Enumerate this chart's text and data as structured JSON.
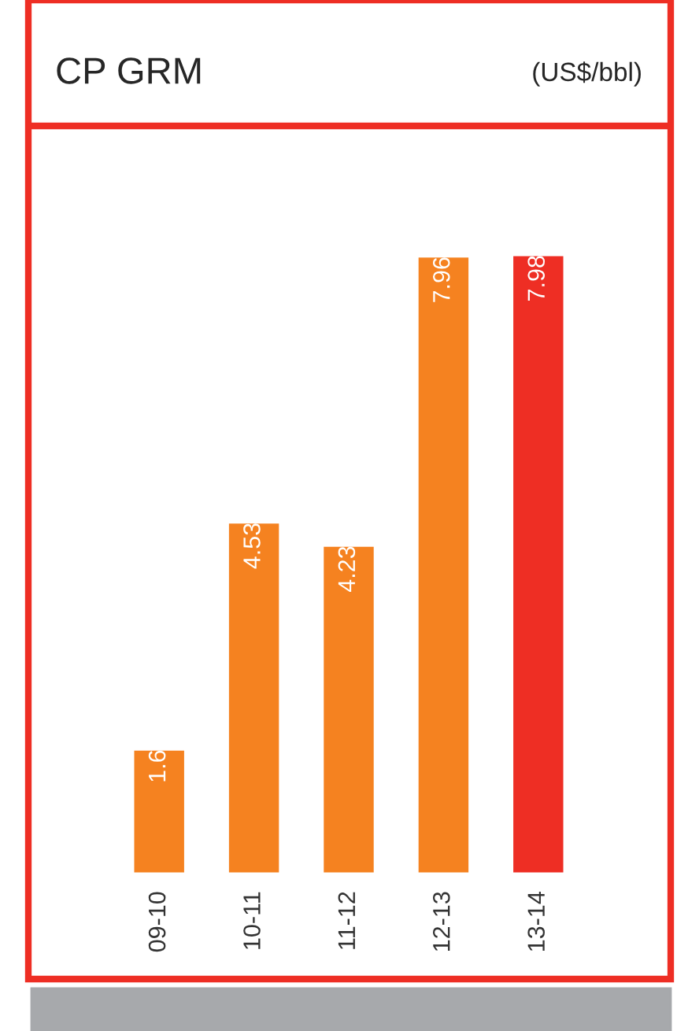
{
  "chart_data": {
    "type": "bar",
    "title": "CP GRM",
    "subtitle": "(US$/bbl)",
    "categories": [
      "09-10",
      "10-11",
      "11-12",
      "12-13",
      "13-14"
    ],
    "values": [
      1.6,
      4.53,
      4.23,
      7.96,
      7.98
    ],
    "colors": [
      "#f58220",
      "#f58220",
      "#f58220",
      "#f58220",
      "#ee2e24"
    ],
    "data_labels": true,
    "grid": false,
    "legend": false
  }
}
